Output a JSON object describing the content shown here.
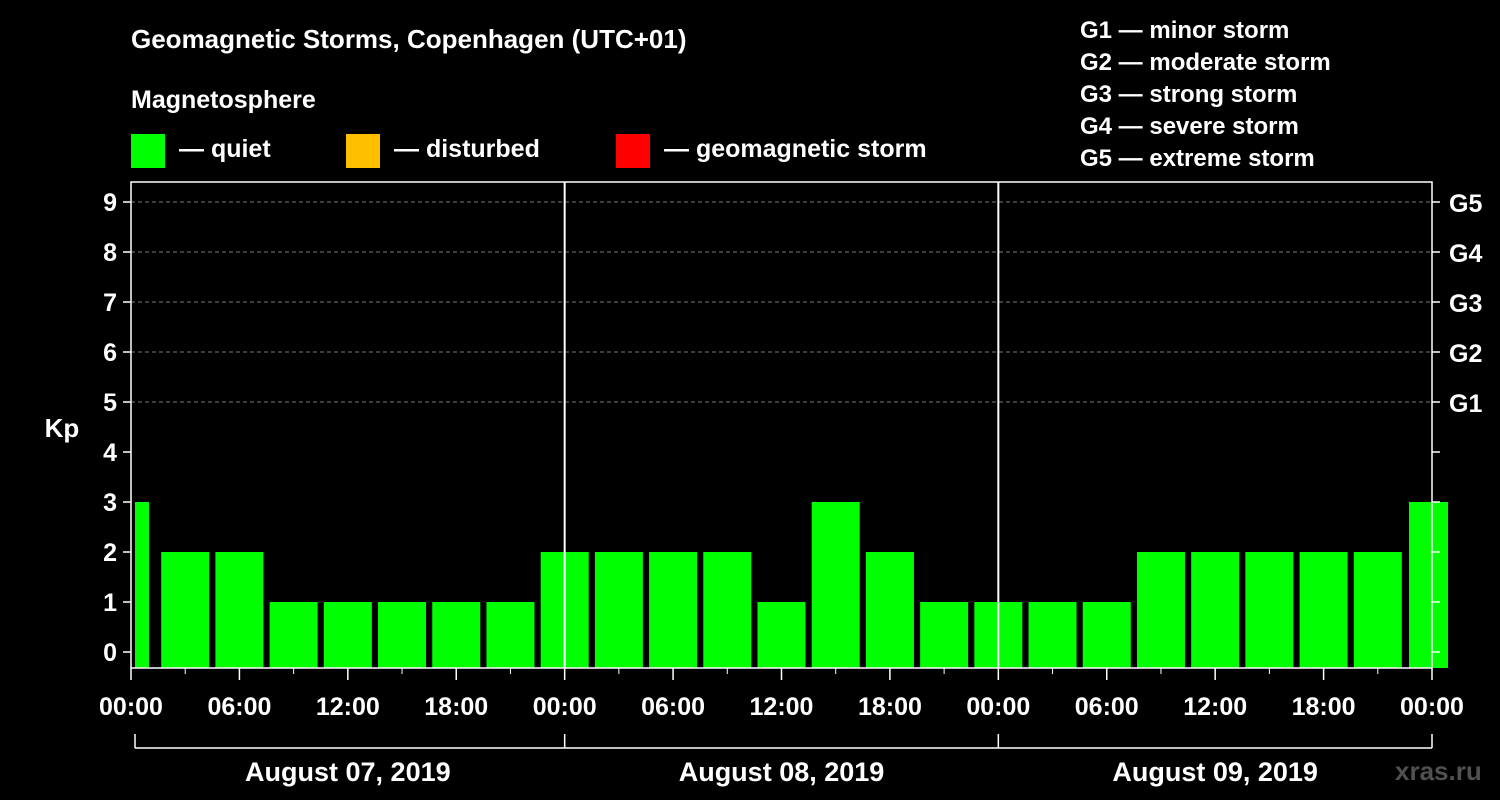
{
  "title": "Geomagnetic Storms, Copenhagen (UTC+01)",
  "legend": {
    "title": "Magnetosphere",
    "items": [
      {
        "label": "— quiet",
        "color": "#00ff00"
      },
      {
        "label": "— disturbed",
        "color": "#ffbf00"
      },
      {
        "label": "— geomagnetic storm",
        "color": "#ff0000"
      }
    ]
  },
  "storm_legend": [
    "G1 — minor storm",
    "G2 — moderate storm",
    "G3 — strong storm",
    "G4 — severe storm",
    "G5 — extreme storm"
  ],
  "watermark": "xras.ru",
  "chart_data": {
    "type": "bar",
    "ylabel": "Kp",
    "ylim": [
      0,
      9
    ],
    "yticks": [
      "0",
      "1",
      "2",
      "3",
      "4",
      "5",
      "6",
      "7",
      "8",
      "9"
    ],
    "right_ticks": [
      {
        "value": 5,
        "label": "G1"
      },
      {
        "value": 6,
        "label": "G2"
      },
      {
        "value": 7,
        "label": "G3"
      },
      {
        "value": 8,
        "label": "G4"
      },
      {
        "value": 9,
        "label": "G5"
      }
    ],
    "xticks": [
      "00:00",
      "06:00",
      "12:00",
      "18:00",
      "00:00",
      "06:00",
      "12:00",
      "18:00",
      "00:00",
      "06:00",
      "12:00",
      "18:00",
      "00:00"
    ],
    "days": [
      "August 07, 2019",
      "August 08, 2019",
      "August 09, 2019"
    ],
    "grid": true,
    "series": [
      {
        "values": [
          3,
          2,
          2,
          1,
          1,
          1,
          1,
          1,
          2,
          2,
          2,
          2,
          1,
          3,
          2,
          1,
          1,
          1,
          1,
          2,
          2,
          2,
          2,
          2,
          3
        ]
      }
    ]
  }
}
